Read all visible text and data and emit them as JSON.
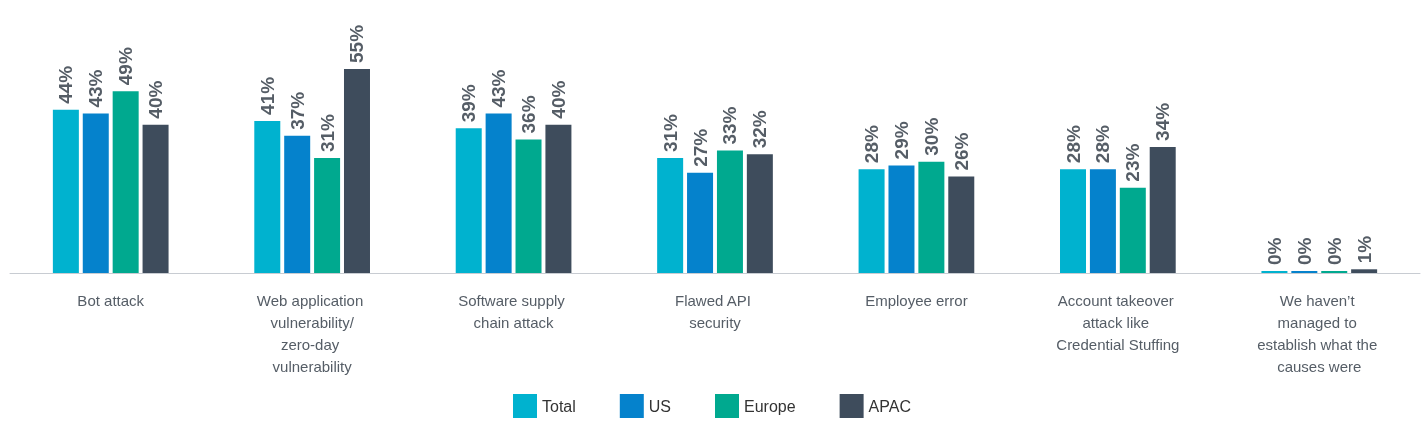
{
  "chart_data": {
    "type": "bar",
    "categories": [
      "Bot attack",
      "Web application vulnerability/zero-day vulnerability",
      "Software supply chain attack",
      "Flawed API security",
      "Employee error",
      "Account takeover attack like Credential Stuffing",
      "We haven’t managed to establish what the causes were"
    ],
    "series": [
      {
        "name": "Total",
        "color": "#00b2cf",
        "values": [
          44,
          41,
          39,
          31,
          28,
          28,
          0
        ],
        "value_labels": [
          "44%",
          "41%",
          "39%",
          "31%",
          "28%",
          "28%",
          "0%"
        ]
      },
      {
        "name": "US",
        "color": "#0582cc",
        "values": [
          43,
          37,
          43,
          27,
          29,
          28,
          0
        ],
        "value_labels": [
          "43%",
          "37%",
          "43%",
          "27%",
          "29%",
          "28%",
          "0%"
        ]
      },
      {
        "name": "Europe",
        "color": "#00a98f",
        "values": [
          49,
          31,
          36,
          33,
          30,
          23,
          0
        ],
        "value_labels": [
          "49%",
          "31%",
          "36%",
          "33%",
          "30%",
          "23%",
          "0%"
        ]
      },
      {
        "name": "APAC",
        "color": "#3e4c5c",
        "values": [
          40,
          55,
          40,
          32,
          26,
          34,
          1
        ],
        "value_labels": [
          "40%",
          "55%",
          "40%",
          "32%",
          "26%",
          "34%",
          "1%"
        ]
      }
    ],
    "legend": "bottom",
    "grid": false
  }
}
